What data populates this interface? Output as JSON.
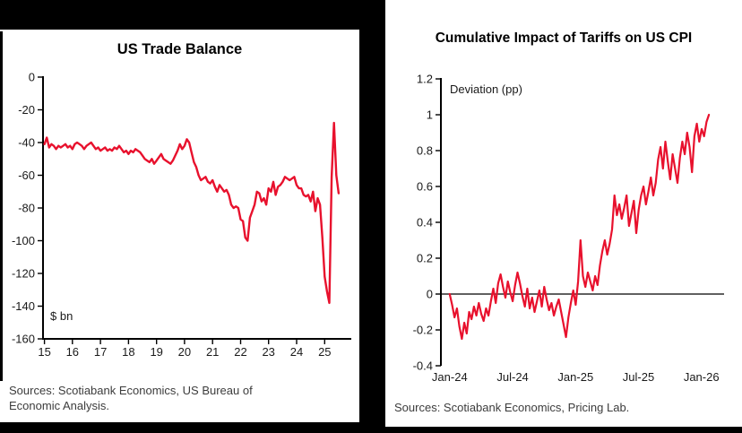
{
  "window": {
    "background": "#000000",
    "panel_background": "#ffffff"
  },
  "chart_data": [
    {
      "type": "line",
      "title": "US Trade Balance",
      "annotation": "$ bn",
      "source": "Sources: Scotiabank Economics, US Bureau of Economic Analysis.",
      "line_color": "#e8112d",
      "grid": false,
      "legend": "none",
      "ylim": [
        -160,
        0
      ],
      "xlim": [
        2014.95,
        2025.95
      ],
      "y_tick_values": [
        0,
        -20,
        -40,
        -60,
        -80,
        -100,
        -120,
        -140,
        -160
      ],
      "y_tick_labels": [
        "0",
        "-20",
        "-40",
        "-60",
        "-80",
        "-100",
        "-120",
        "-140",
        "-160"
      ],
      "x_tick_values": [
        2015,
        2016,
        2017,
        2018,
        2019,
        2020,
        2021,
        2022,
        2023,
        2024,
        2025
      ],
      "x_tick_labels": [
        "15",
        "16",
        "17",
        "18",
        "19",
        "20",
        "21",
        "22",
        "23",
        "24",
        "25"
      ],
      "x_unit": "year, monthly observations",
      "x_start": 2015.0,
      "x_end": 2025.5,
      "values": [
        -41,
        -37,
        -43,
        -41,
        -42,
        -44,
        -42,
        -43,
        -42,
        -41,
        -43,
        -42,
        -44,
        -41,
        -40,
        -41,
        -42,
        -44,
        -42,
        -41,
        -40,
        -42,
        -44,
        -43,
        -45,
        -44,
        -43,
        -45,
        -44,
        -45,
        -43,
        -44,
        -42,
        -44,
        -46,
        -45,
        -47,
        -45,
        -46,
        -44,
        -45,
        -46,
        -48,
        -50,
        -51,
        -52,
        -50,
        -53,
        -51,
        -49,
        -47,
        -50,
        -51,
        -52,
        -53,
        -51,
        -48,
        -45,
        -41,
        -44,
        -42,
        -38,
        -40,
        -46,
        -52,
        -55,
        -60,
        -63,
        -62,
        -61,
        -64,
        -65,
        -63,
        -67,
        -70,
        -66,
        -68,
        -70,
        -69,
        -72,
        -78,
        -80,
        -79,
        -80,
        -87,
        -88,
        -98,
        -100,
        -86,
        -82,
        -78,
        -70,
        -71,
        -76,
        -74,
        -78,
        -68,
        -70,
        -64,
        -72,
        -67,
        -66,
        -64,
        -61,
        -62,
        -63,
        -62,
        -61,
        -66,
        -68,
        -68,
        -72,
        -73,
        -72,
        -76,
        -70,
        -82,
        -74,
        -78,
        -98,
        -122,
        -131,
        -138,
        -61,
        -28,
        -60,
        -71
      ]
    },
    {
      "type": "line",
      "title": "Cumulative Impact of Tariffs on US CPI",
      "annotation": "Deviation (pp)",
      "source": "Sources: Scotiabank Economics, Pricing Lab.",
      "line_color": "#e8112d",
      "grid": false,
      "legend": "none",
      "zero_line": true,
      "ylim": [
        -0.4,
        1.2
      ],
      "xlim": [
        2023.93,
        2026.18
      ],
      "y_tick_values": [
        1.2,
        1,
        0.8,
        0.6,
        0.4,
        0.2,
        0,
        -0.2,
        -0.4
      ],
      "y_tick_labels": [
        "1.2",
        "1",
        "0.8",
        "0.6",
        "0.4",
        "0.2",
        "0",
        "-0.2",
        "-0.4"
      ],
      "x_tick_values": [
        2024.0,
        2024.5,
        2025.0,
        2025.5,
        2026.0
      ],
      "x_tick_labels": [
        "Jan-24",
        "Jul-24",
        "Jan-25",
        "Jul-25",
        "Jan-26"
      ],
      "x_unit": "date, weekly observations",
      "x_start": 2024.0,
      "x_end": 2026.06,
      "values": [
        0.0,
        -0.06,
        -0.13,
        -0.08,
        -0.18,
        -0.25,
        -0.16,
        -0.22,
        -0.1,
        -0.14,
        -0.07,
        -0.12,
        -0.05,
        -0.11,
        -0.15,
        -0.08,
        -0.12,
        -0.04,
        0.03,
        -0.05,
        0.06,
        0.11,
        0.04,
        -0.02,
        0.07,
        0.01,
        -0.04,
        0.05,
        0.12,
        0.06,
        -0.01,
        -0.07,
        0.03,
        -0.08,
        -0.02,
        -0.1,
        -0.04,
        0.02,
        -0.07,
        0.04,
        -0.03,
        -0.09,
        -0.05,
        -0.12,
        -0.07,
        -0.03,
        -0.1,
        -0.17,
        -0.24,
        -0.13,
        -0.05,
        0.02,
        -0.06,
        0.07,
        0.3,
        0.1,
        0.04,
        0.12,
        0.07,
        0.02,
        0.1,
        0.05,
        0.16,
        0.24,
        0.3,
        0.22,
        0.28,
        0.36,
        0.55,
        0.44,
        0.5,
        0.42,
        0.48,
        0.55,
        0.38,
        0.45,
        0.52,
        0.34,
        0.47,
        0.55,
        0.6,
        0.5,
        0.57,
        0.65,
        0.55,
        0.62,
        0.75,
        0.82,
        0.7,
        0.85,
        0.74,
        0.64,
        0.78,
        0.7,
        0.62,
        0.76,
        0.85,
        0.78,
        0.9,
        0.82,
        0.68,
        0.88,
        0.95,
        0.85,
        0.92,
        0.88,
        0.96,
        1.0
      ]
    }
  ]
}
